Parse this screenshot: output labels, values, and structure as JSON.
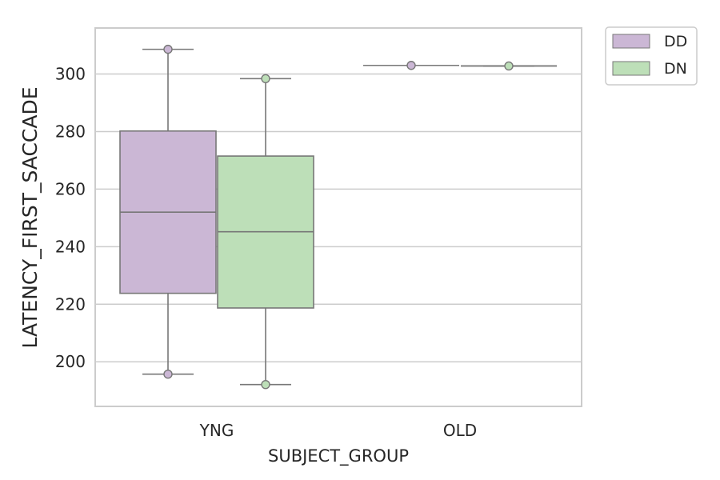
{
  "chart_data": {
    "type": "box",
    "title": "",
    "xlabel": "SUBJECT_GROUP",
    "ylabel": "LATENCY_FIRST_SACCADE",
    "categories": [
      "YNG",
      "OLD"
    ],
    "ylim": [
      184.5,
      316
    ],
    "yticks": [
      200,
      220,
      240,
      260,
      280,
      300
    ],
    "grid": "horizontal",
    "legend_placement": "outside-top-right",
    "series": [
      {
        "name": "DD",
        "color": "#cbb7d5",
        "boxes": [
          {
            "category": "YNG",
            "q1": 223.8,
            "median": 252.0,
            "q3": 280.2,
            "whisker_low": 195.7,
            "whisker_high": 308.6,
            "outliers": [
              195.7,
              308.6
            ]
          },
          {
            "category": "OLD",
            "q1": 303.0,
            "median": 303.0,
            "q3": 303.0,
            "whisker_low": 303.0,
            "whisker_high": 303.0,
            "outliers": [
              303.0
            ]
          }
        ]
      },
      {
        "name": "DN",
        "color": "#bddfb8",
        "boxes": [
          {
            "category": "YNG",
            "q1": 218.7,
            "median": 245.2,
            "q3": 271.5,
            "whisker_low": 192.1,
            "whisker_high": 298.4,
            "outliers": [
              192.1,
              298.4
            ]
          },
          {
            "category": "OLD",
            "q1": 302.8,
            "median": 302.8,
            "q3": 302.8,
            "whisker_low": 302.8,
            "whisker_high": 302.8,
            "outliers": [
              302.8
            ]
          }
        ]
      }
    ]
  }
}
